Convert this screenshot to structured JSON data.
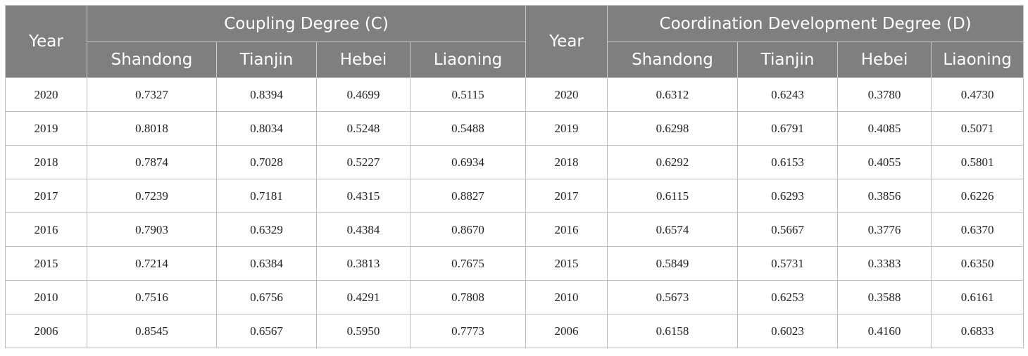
{
  "table": {
    "year_header": "Year",
    "group_headers": [
      "Coupling Degree (C)",
      "Coordination Development Degree (D)"
    ],
    "provinces": [
      "Shandong",
      "Tianjin",
      "Hebei",
      "Liaoning"
    ],
    "rows": [
      {
        "year": "2020",
        "c": [
          "0.7327",
          "0.8394",
          "0.4699",
          "0.5115"
        ],
        "d": [
          "0.6312",
          "0.6243",
          "0.3780",
          "0.4730"
        ]
      },
      {
        "year": "2019",
        "c": [
          "0.8018",
          "0.8034",
          "0.5248",
          "0.5488"
        ],
        "d": [
          "0.6298",
          "0.6791",
          "0.4085",
          "0.5071"
        ]
      },
      {
        "year": "2018",
        "c": [
          "0.7874",
          "0.7028",
          "0.5227",
          "0.6934"
        ],
        "d": [
          "0.6292",
          "0.6153",
          "0.4055",
          "0.5801"
        ]
      },
      {
        "year": "2017",
        "c": [
          "0.7239",
          "0.7181",
          "0.4315",
          "0.8827"
        ],
        "d": [
          "0.6115",
          "0.6293",
          "0.3856",
          "0.6226"
        ]
      },
      {
        "year": "2016",
        "c": [
          "0.7903",
          "0.6329",
          "0.4384",
          "0.8670"
        ],
        "d": [
          "0.6574",
          "0.5667",
          "0.3776",
          "0.6370"
        ]
      },
      {
        "year": "2015",
        "c": [
          "0.7214",
          "0.6384",
          "0.3813",
          "0.7675"
        ],
        "d": [
          "0.5849",
          "0.5731",
          "0.3383",
          "0.6350"
        ]
      },
      {
        "year": "2010",
        "c": [
          "0.7516",
          "0.6756",
          "0.4291",
          "0.7808"
        ],
        "d": [
          "0.5673",
          "0.6253",
          "0.3588",
          "0.6161"
        ]
      },
      {
        "year": "2006",
        "c": [
          "0.8545",
          "0.6567",
          "0.5950",
          "0.7773"
        ],
        "d": [
          "0.6158",
          "0.6023",
          "0.4160",
          "0.6833"
        ]
      }
    ]
  }
}
